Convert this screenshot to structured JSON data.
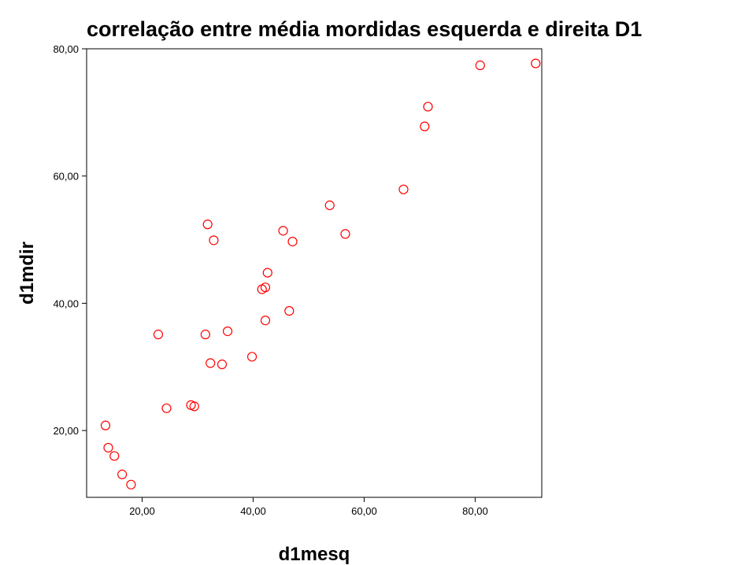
{
  "chart_data": {
    "type": "scatter",
    "title": "correlação entre média mordidas esquerda e direita D1",
    "xlabel": "d1mesq",
    "ylabel": "d1mdir",
    "xlim": [
      10,
      92
    ],
    "ylim": [
      9.5,
      80
    ],
    "xticks": [
      20,
      40,
      60,
      80
    ],
    "yticks": [
      20,
      40,
      60,
      80
    ],
    "xtick_labels": [
      "20,00",
      "40,00",
      "60,00",
      "80,00"
    ],
    "ytick_labels": [
      "20,00",
      "40,00",
      "60,00",
      "80,00"
    ],
    "grid": false,
    "marker_color": "#ff0000",
    "axis_color": "#000000",
    "points": [
      {
        "x": 13.4,
        "y": 20.8
      },
      {
        "x": 13.9,
        "y": 17.3
      },
      {
        "x": 15.0,
        "y": 16.0
      },
      {
        "x": 16.4,
        "y": 13.1
      },
      {
        "x": 18.0,
        "y": 11.5
      },
      {
        "x": 22.9,
        "y": 35.1
      },
      {
        "x": 24.4,
        "y": 23.5
      },
      {
        "x": 28.8,
        "y": 24.0
      },
      {
        "x": 29.4,
        "y": 23.8
      },
      {
        "x": 31.4,
        "y": 35.1
      },
      {
        "x": 31.8,
        "y": 52.4
      },
      {
        "x": 32.3,
        "y": 30.6
      },
      {
        "x": 32.9,
        "y": 49.9
      },
      {
        "x": 34.4,
        "y": 30.4
      },
      {
        "x": 35.4,
        "y": 35.6
      },
      {
        "x": 39.8,
        "y": 31.6
      },
      {
        "x": 41.6,
        "y": 42.2
      },
      {
        "x": 42.2,
        "y": 42.5
      },
      {
        "x": 42.2,
        "y": 37.3
      },
      {
        "x": 42.6,
        "y": 44.8
      },
      {
        "x": 45.4,
        "y": 51.4
      },
      {
        "x": 46.5,
        "y": 38.8
      },
      {
        "x": 47.1,
        "y": 49.7
      },
      {
        "x": 53.8,
        "y": 55.4
      },
      {
        "x": 56.6,
        "y": 50.9
      },
      {
        "x": 67.1,
        "y": 57.9
      },
      {
        "x": 70.9,
        "y": 67.8
      },
      {
        "x": 71.5,
        "y": 70.9
      },
      {
        "x": 80.9,
        "y": 77.4
      },
      {
        "x": 90.9,
        "y": 77.7
      }
    ]
  }
}
